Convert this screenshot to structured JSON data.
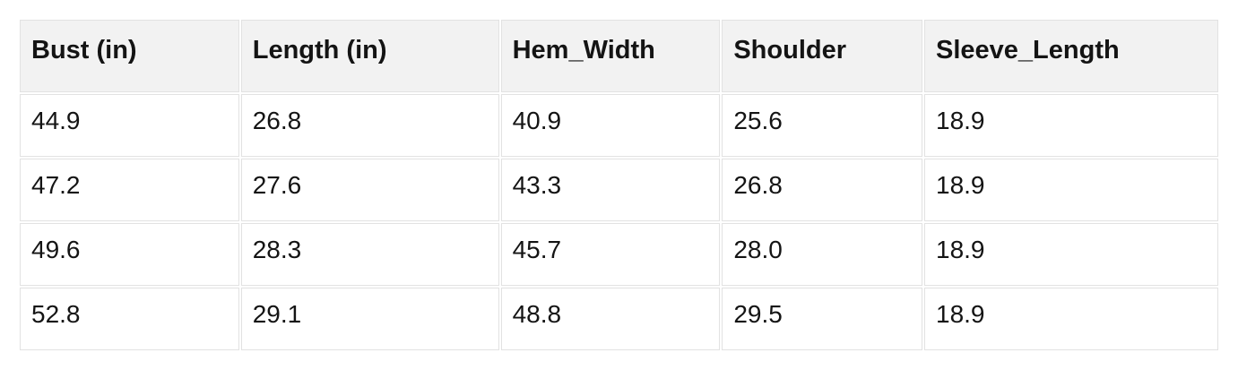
{
  "chart_data": {
    "type": "table",
    "columns": [
      "Bust (in)",
      "Length (in)",
      "Hem_Width",
      "Shoulder",
      "Sleeve_Length"
    ],
    "rows": [
      [
        "44.9",
        "26.8",
        "40.9",
        "25.6",
        "18.9"
      ],
      [
        "47.2",
        "27.6",
        "43.3",
        "26.8",
        "18.9"
      ],
      [
        "49.6",
        "28.3",
        "45.7",
        "28.0",
        "18.9"
      ],
      [
        "52.8",
        "29.1",
        "48.8",
        "29.5",
        "18.9"
      ]
    ]
  },
  "colors": {
    "header_background": "#f2f2f2",
    "cell_border": "#e2e2e2",
    "text": "#141414",
    "page_background": "#ffffff"
  }
}
